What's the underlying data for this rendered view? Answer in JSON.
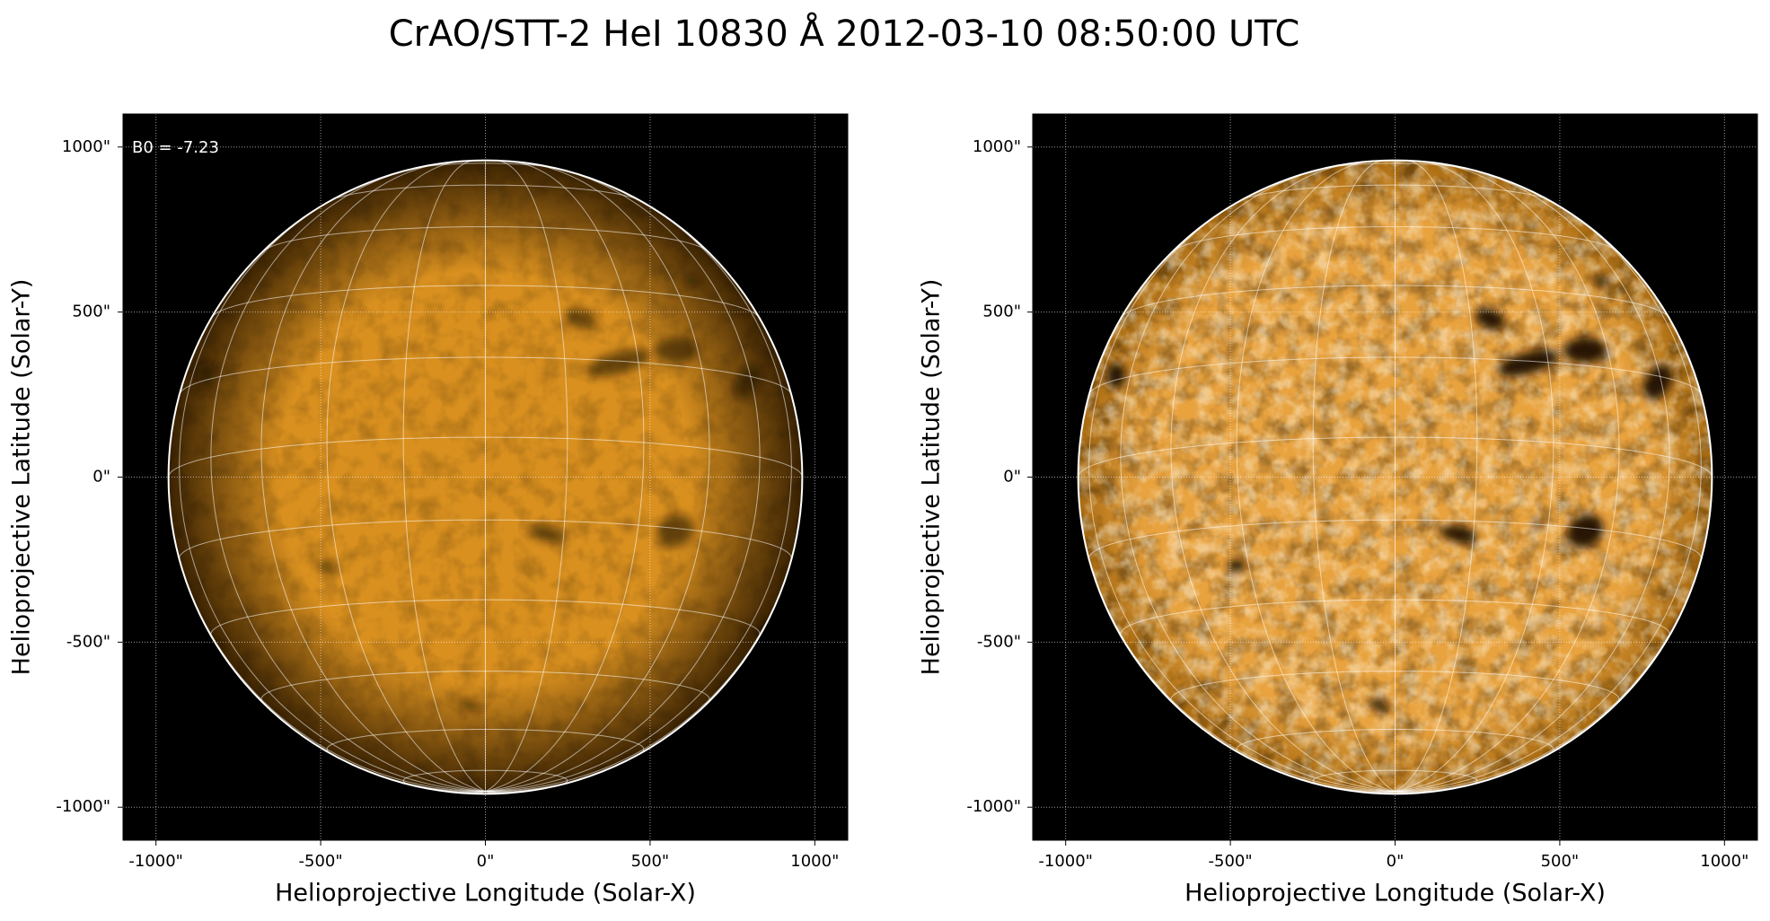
{
  "title": "CrAO/STT-2 HeI 10830 Å 2012-03-10 08:50:00 UTC",
  "chart_data": [
    {
      "type": "image",
      "color": "#d9901f",
      "contrast": "low",
      "xlabel": "Helioprojective Longitude (Solar-X)",
      "ylabel": "Helioprojective Latitude (Solar-Y)",
      "annotation": "B0 = -7.23",
      "b0": -7.23,
      "rsun": 962,
      "grid_spacing": 15,
      "xlim": [
        -1100,
        1100
      ],
      "ylim": [
        -1100,
        1100
      ],
      "xticks": [
        {
          "value": -1000,
          "label": "-1000\""
        },
        {
          "value": -500,
          "label": "-500\""
        },
        {
          "value": 0,
          "label": "0\""
        },
        {
          "value": 500,
          "label": "500\""
        },
        {
          "value": 1000,
          "label": "1000\""
        }
      ],
      "yticks": [
        {
          "value": -1000,
          "label": "-1000\""
        },
        {
          "value": -500,
          "label": "-500\""
        },
        {
          "value": 0,
          "label": "0\""
        },
        {
          "value": 500,
          "label": "500\""
        },
        {
          "value": 1000,
          "label": "1000\""
        }
      ],
      "grid": true
    },
    {
      "type": "image",
      "color": "#e8a23e",
      "contrast": "high",
      "xlabel": "Helioprojective Longitude (Solar-X)",
      "ylabel": "Helioprojective Latitude (Solar-Y)",
      "b0": -7.23,
      "rsun": 962,
      "grid_spacing": 15,
      "xlim": [
        -1100,
        1100
      ],
      "ylim": [
        -1100,
        1100
      ],
      "xticks": [
        {
          "value": -1000,
          "label": "-1000\""
        },
        {
          "value": -500,
          "label": "-500\""
        },
        {
          "value": 0,
          "label": "0\""
        },
        {
          "value": 500,
          "label": "500\""
        },
        {
          "value": 1000,
          "label": "1000\""
        }
      ],
      "yticks": [
        {
          "value": -1000,
          "label": "-1000\""
        },
        {
          "value": -500,
          "label": "-500\""
        },
        {
          "value": 0,
          "label": "0\""
        },
        {
          "value": 500,
          "label": "500\""
        },
        {
          "value": 1000,
          "label": "1000\""
        }
      ],
      "grid": true
    }
  ]
}
